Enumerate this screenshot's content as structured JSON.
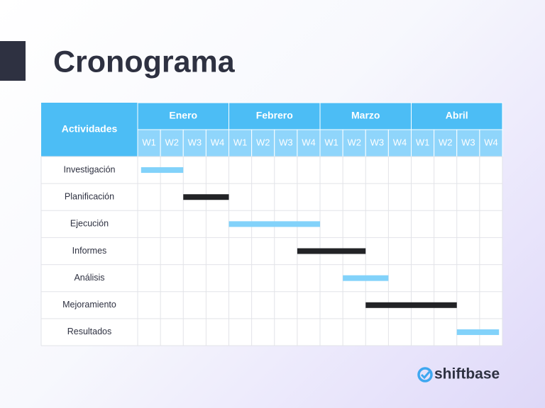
{
  "title": "Cronograma",
  "table": {
    "header": "Actividades",
    "months": [
      {
        "name": "Enero",
        "weeks": [
          "W1",
          "W2",
          "W3",
          "W4"
        ]
      },
      {
        "name": "Febrero",
        "weeks": [
          "W1",
          "W2",
          "W3",
          "W4"
        ]
      },
      {
        "name": "Marzo",
        "weeks": [
          "W1",
          "W2",
          "W3",
          "W4"
        ]
      },
      {
        "name": "Abril",
        "weeks": [
          "W1",
          "W2",
          "W3",
          "W4"
        ]
      }
    ],
    "rows": [
      {
        "label": "Investigación",
        "start": 0.15,
        "end": 2,
        "color": "#82d2fa"
      },
      {
        "label": "Planificación",
        "start": 2,
        "end": 4,
        "color": "#222326"
      },
      {
        "label": "Ejecución",
        "start": 4,
        "end": 8,
        "color": "#82d2fa"
      },
      {
        "label": "Informes",
        "start": 7,
        "end": 10,
        "color": "#222326"
      },
      {
        "label": "Análisis",
        "start": 9,
        "end": 11,
        "color": "#82d2fa"
      },
      {
        "label": "Mejoramiento",
        "start": 10,
        "end": 14,
        "color": "#222326"
      },
      {
        "label": "Resultados",
        "start": 14,
        "end": 15.85,
        "color": "#82d2fa"
      }
    ]
  },
  "logo": "shiftbase"
}
